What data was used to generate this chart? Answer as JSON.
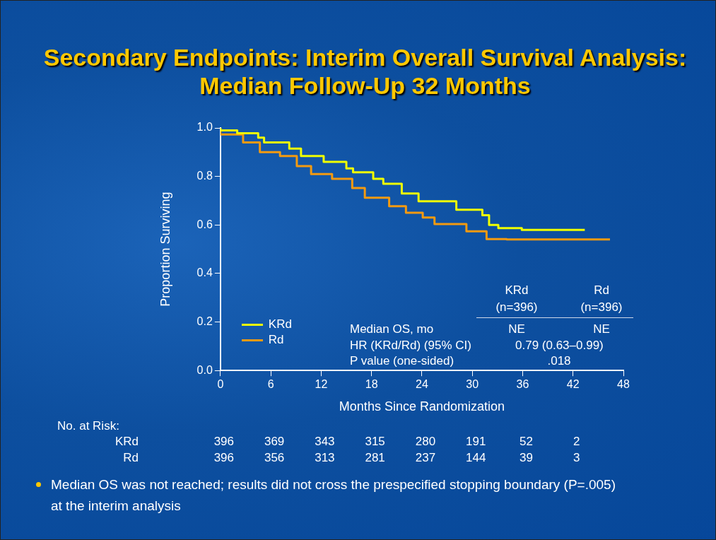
{
  "chart_data": {
    "type": "step",
    "title": "Secondary Endpoints: Interim Overall Survival Analysis: Median Follow-Up 32 Months",
    "xlabel": "Months Since Randomization",
    "ylabel": "Proportion Surviving",
    "xlim": [
      0,
      48
    ],
    "xticks": [
      0,
      6,
      12,
      18,
      24,
      30,
      36,
      42,
      48
    ],
    "ylim": [
      0,
      1
    ],
    "yticks": [
      {
        "value": 0,
        "label": "0.0"
      },
      0.2,
      0.4,
      0.6,
      0.8,
      {
        "value": 1,
        "label": "1.0"
      }
    ],
    "legend": "bottom left",
    "series": [
      {
        "name": "KRd",
        "color": "#f0ff00",
        "x": [
          0,
          2,
          4.5,
          5.2,
          8.2,
          9.6,
          12.3,
          15,
          15.8,
          18.2,
          19.4,
          21.6,
          23.6,
          28.1,
          31.2,
          32,
          33.1,
          35.9,
          36.4,
          43.4
        ],
        "values": [
          1,
          0.99,
          0.978,
          0.96,
          0.94,
          0.915,
          0.884,
          0.86,
          0.833,
          0.817,
          0.79,
          0.77,
          0.73,
          0.698,
          0.663,
          0.64,
          0.6,
          0.587,
          0.58,
          0.58
        ]
      },
      {
        "name": "Rd",
        "color": "#f39a10",
        "x": [
          0,
          2.7,
          4.7,
          7.1,
          9.1,
          10.8,
          13.3,
          15.7,
          17.2,
          20.1,
          22.1,
          24.1,
          25.5,
          29.3,
          31.7,
          34.1,
          46.4
        ],
        "values": [
          1,
          0.973,
          0.94,
          0.9,
          0.884,
          0.843,
          0.81,
          0.79,
          0.752,
          0.712,
          0.677,
          0.65,
          0.631,
          0.604,
          0.574,
          0.542,
          0.54
        ]
      }
    ],
    "annotations": [
      "No. at Risk:",
      "KRd 396 369 343 315 280 191 52 2",
      "Rd 396 356 313 281 237 144 39 3",
      "KRd",
      "(n=396)",
      "Rd",
      "(n=396)",
      "Median OS, mo",
      "NE",
      "NE",
      "HR (KRd/Rd) (95% CI)",
      "0.79 (0.63–0.99)",
      "P value (one-sided)",
      ".018",
      "Median OS was not reached; results did not cross the prespecified stopping boundary (P=.005) at the interim analysis"
    ]
  }
}
